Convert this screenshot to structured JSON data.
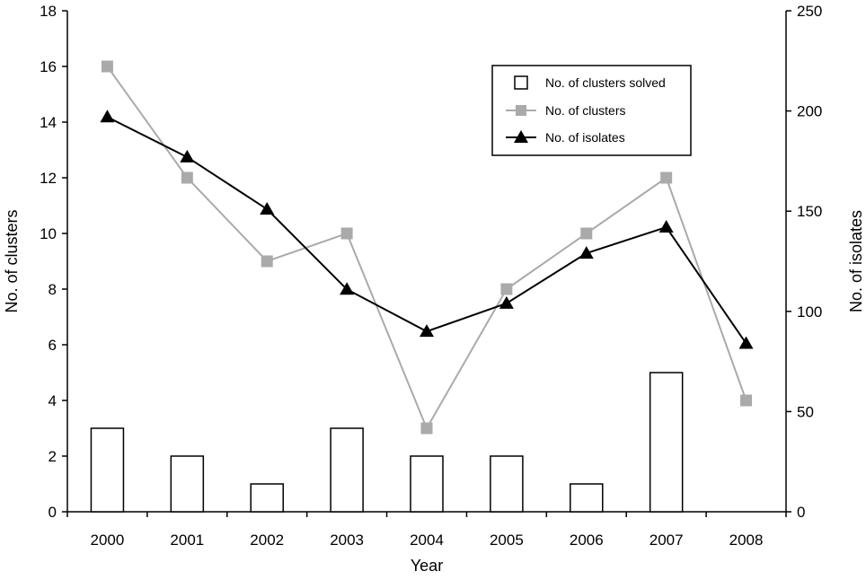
{
  "chart_data": {
    "type": "bar+line",
    "categories": [
      "2000",
      "2001",
      "2002",
      "2003",
      "2004",
      "2005",
      "2006",
      "2007",
      "2008"
    ],
    "xlabel": "Year",
    "ylabel_left": "No. of clusters",
    "ylabel_right": "No. of isolates",
    "ylim_left": [
      0,
      18
    ],
    "yticks_left": [
      "0",
      "2",
      "4",
      "6",
      "8",
      "10",
      "12",
      "14",
      "16",
      "18"
    ],
    "ylim_right": [
      0,
      250
    ],
    "yticks_right": [
      "0",
      "50",
      "100",
      "150",
      "200",
      "250"
    ],
    "grid": false,
    "legend_position": "top-right",
    "series": [
      {
        "name": "No. of clusters solved",
        "kind": "bar",
        "axis": "left",
        "color": "#ffffff",
        "stroke": "#000000",
        "values": [
          3,
          2,
          1,
          3,
          2,
          2,
          1,
          5,
          null
        ]
      },
      {
        "name": "No. of clusters",
        "kind": "line",
        "marker": "square",
        "axis": "left",
        "color": "#aaaaaa",
        "values": [
          16,
          12,
          9,
          10,
          3,
          8,
          10,
          12,
          4
        ]
      },
      {
        "name": "No. of isolates",
        "kind": "line",
        "marker": "triangle",
        "axis": "right",
        "color": "#000000",
        "values": [
          197,
          177,
          151,
          111,
          90,
          104,
          129,
          142,
          84
        ]
      }
    ]
  }
}
